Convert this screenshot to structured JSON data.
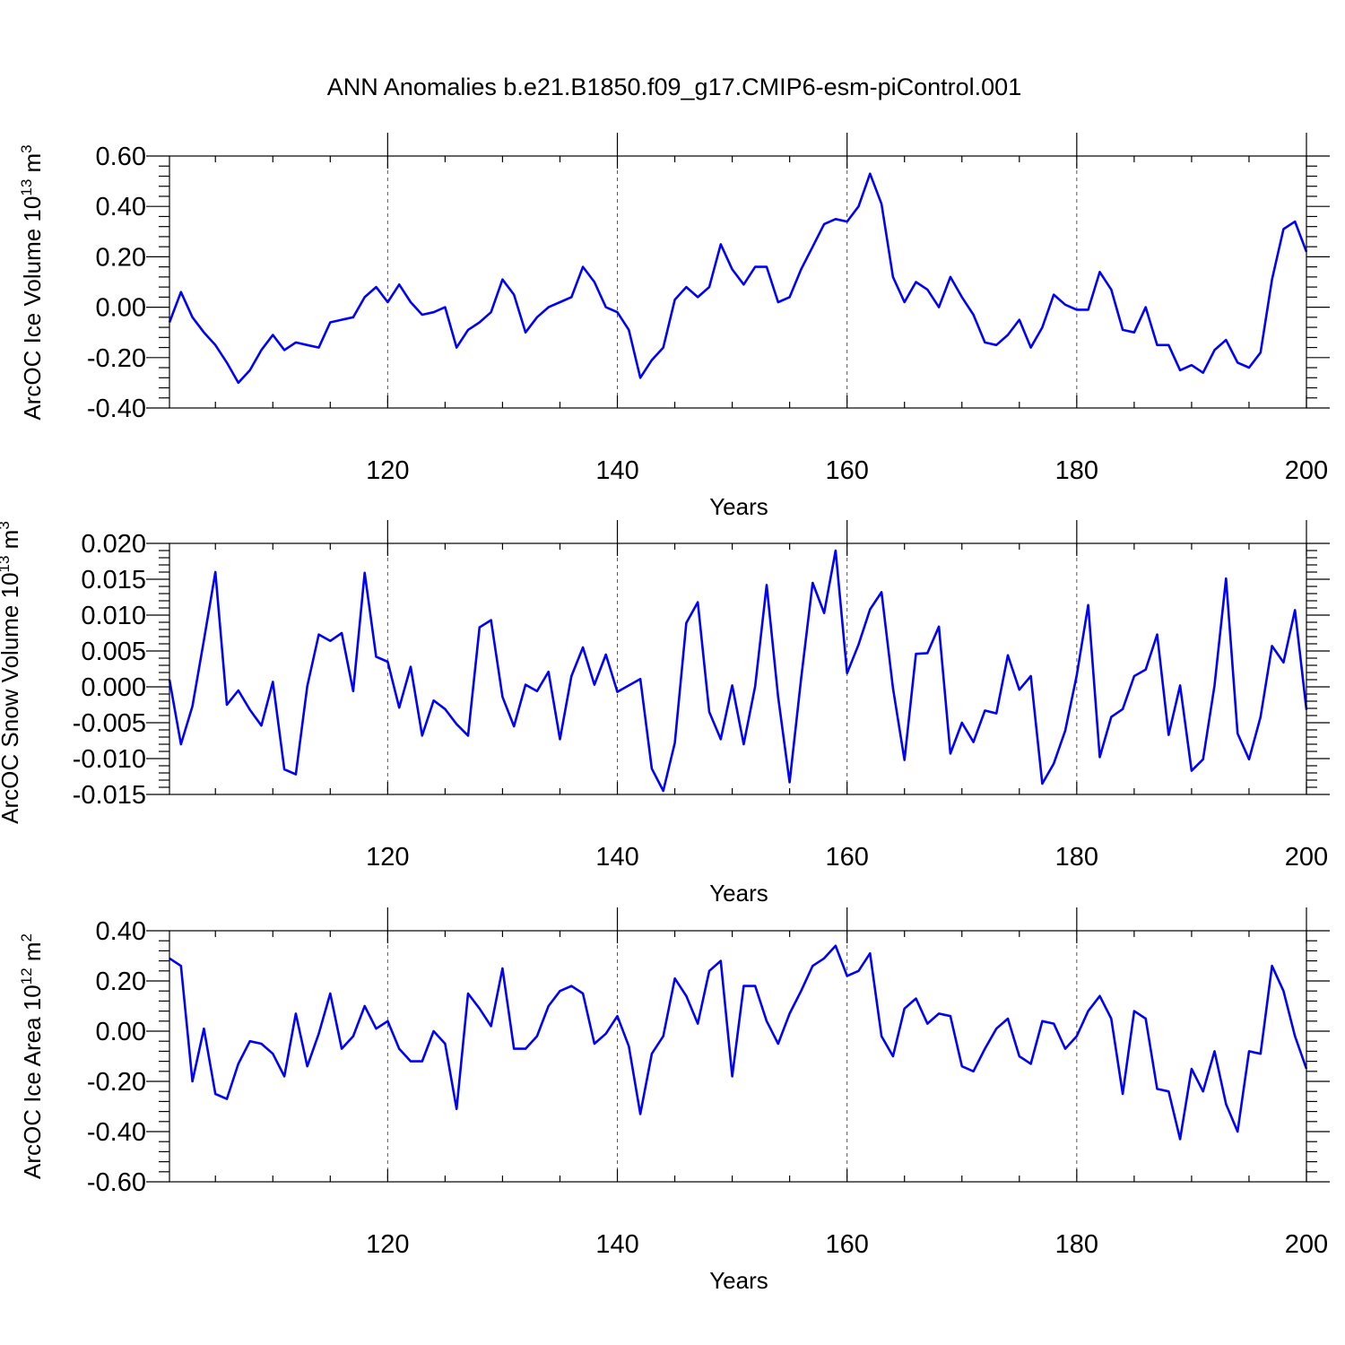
{
  "chart_data": {
    "type": "line",
    "title": "ANN Anomalies b.e21.B1850.f09_g17.CMIP6-esm-piControl.001",
    "line_color": "#0000ff",
    "x_tick_labels": [
      "120",
      "140",
      "160",
      "180",
      "200"
    ],
    "panels": [
      {
        "name": "ice-volume",
        "type": "line",
        "xlabel": "Years",
        "ylabel_main": "ArcOC Ice Volume 10",
        "ylabel_exp": "13",
        "ylabel_unit": " m",
        "ylabel_unit_exp": "3",
        "xlim": [
          101,
          200
        ],
        "ylim": [
          -0.4,
          0.6
        ],
        "grid_x": [
          120,
          140,
          160,
          180
        ],
        "x_ticks": [
          120,
          140,
          160,
          180,
          200
        ],
        "y_ticks": [
          -0.4,
          -0.2,
          0.0,
          0.2,
          0.4,
          0.6
        ],
        "y_tick_labels": [
          "-0.40",
          "-0.20",
          "0.00",
          "0.20",
          "0.40",
          "0.60"
        ],
        "x": [
          101,
          102,
          103,
          104,
          105,
          106,
          107,
          108,
          109,
          110,
          111,
          112,
          113,
          114,
          115,
          116,
          117,
          118,
          119,
          120,
          121,
          122,
          123,
          124,
          125,
          126,
          127,
          128,
          129,
          130,
          131,
          132,
          133,
          134,
          135,
          136,
          137,
          138,
          139,
          140,
          141,
          142,
          143,
          144,
          145,
          146,
          147,
          148,
          149,
          150,
          151,
          152,
          153,
          154,
          155,
          156,
          157,
          158,
          159,
          160,
          161,
          162,
          163,
          164,
          165,
          166,
          167,
          168,
          169,
          170,
          171,
          172,
          173,
          174,
          175,
          176,
          177,
          178,
          179,
          180,
          181,
          182,
          183,
          184,
          185,
          186,
          187,
          188,
          189,
          190,
          191,
          192,
          193,
          194,
          195,
          196,
          197,
          198,
          199,
          200
        ],
        "values": [
          -0.06,
          0.06,
          -0.04,
          -0.1,
          -0.15,
          -0.22,
          -0.3,
          -0.25,
          -0.17,
          -0.11,
          -0.17,
          -0.14,
          -0.15,
          -0.16,
          -0.06,
          -0.05,
          -0.04,
          0.04,
          0.08,
          0.02,
          0.09,
          0.02,
          -0.03,
          -0.02,
          0.0,
          -0.16,
          -0.09,
          -0.06,
          -0.02,
          0.11,
          0.05,
          -0.1,
          -0.04,
          0.0,
          0.02,
          0.04,
          0.16,
          0.1,
          0.0,
          -0.02,
          -0.09,
          -0.28,
          -0.21,
          -0.16,
          0.03,
          0.08,
          0.04,
          0.08,
          0.25,
          0.15,
          0.09,
          0.16,
          0.16,
          0.02,
          0.04,
          0.15,
          0.24,
          0.33,
          0.35,
          0.34,
          0.4,
          0.53,
          0.41,
          0.12,
          0.02,
          0.1,
          0.07,
          0.0,
          0.12,
          0.04,
          -0.03,
          -0.14,
          -0.15,
          -0.11,
          -0.05,
          -0.16,
          -0.08,
          0.05,
          0.01,
          -0.01,
          -0.01,
          0.14,
          0.07,
          -0.09,
          -0.1,
          0.0,
          -0.15,
          -0.15,
          -0.25,
          -0.23,
          -0.26,
          -0.17,
          -0.13,
          -0.22,
          -0.24,
          -0.18,
          0.11,
          0.31,
          0.34,
          0.22
        ]
      },
      {
        "name": "snow-volume",
        "type": "line",
        "xlabel": "Years",
        "ylabel_main": "ArcOC Snow Volume 10",
        "ylabel_exp": "13",
        "ylabel_unit": " m",
        "ylabel_unit_exp": "3",
        "xlim": [
          101,
          200
        ],
        "ylim": [
          -0.015,
          0.02
        ],
        "grid_x": [
          120,
          140,
          160,
          180
        ],
        "x_ticks": [
          120,
          140,
          160,
          180,
          200
        ],
        "y_ticks": [
          -0.015,
          -0.01,
          -0.005,
          0.0,
          0.005,
          0.01,
          0.015,
          0.02
        ],
        "y_tick_labels": [
          "-0.015",
          "-0.010",
          "-0.005",
          "0.000",
          "0.005",
          "0.010",
          "0.015",
          "0.020"
        ],
        "x": [
          101,
          102,
          103,
          104,
          105,
          106,
          107,
          108,
          109,
          110,
          111,
          112,
          113,
          114,
          115,
          116,
          117,
          118,
          119,
          120,
          121,
          122,
          123,
          124,
          125,
          126,
          127,
          128,
          129,
          130,
          131,
          132,
          133,
          134,
          135,
          136,
          137,
          138,
          139,
          140,
          141,
          142,
          143,
          144,
          145,
          146,
          147,
          148,
          149,
          150,
          151,
          152,
          153,
          154,
          155,
          156,
          157,
          158,
          159,
          160,
          161,
          162,
          163,
          164,
          165,
          166,
          167,
          168,
          169,
          170,
          171,
          172,
          173,
          174,
          175,
          176,
          177,
          178,
          179,
          180,
          181,
          182,
          183,
          184,
          185,
          186,
          187,
          188,
          189,
          190,
          191,
          192,
          193,
          194,
          195,
          196,
          197,
          198,
          199,
          200
        ],
        "values": [
          0.001,
          -0.008,
          -0.0027,
          0.0065,
          0.016,
          -0.0025,
          -0.0005,
          -0.0032,
          -0.0054,
          0.0007,
          -0.0115,
          -0.0122,
          0.0001,
          0.0073,
          0.0064,
          0.0075,
          -0.0006,
          0.0159,
          0.0042,
          0.0035,
          -0.0029,
          0.0028,
          -0.0068,
          -0.0019,
          -0.0031,
          -0.0052,
          -0.0068,
          0.0083,
          0.0093,
          -0.0014,
          -0.0055,
          0.0003,
          -0.0006,
          0.0021,
          -0.0073,
          0.0015,
          0.0055,
          0.0003,
          0.0045,
          -0.0007,
          0.0002,
          0.0011,
          -0.0114,
          -0.0145,
          -0.0078,
          0.0089,
          0.0118,
          -0.0035,
          -0.0073,
          0.0002,
          -0.008,
          0.0001,
          0.0142,
          -0.0014,
          -0.0133,
          0.0011,
          0.0145,
          0.0103,
          0.019,
          0.0019,
          0.0059,
          0.0108,
          0.0132,
          -0.0002,
          -0.0102,
          0.0046,
          0.0047,
          0.0084,
          -0.0093,
          -0.005,
          -0.0077,
          -0.0033,
          -0.0037,
          0.0044,
          -0.0004,
          0.0015,
          -0.0135,
          -0.0107,
          -0.0061,
          0.0016,
          0.0114,
          -0.0098,
          -0.0042,
          -0.0031,
          0.0015,
          0.0024,
          0.0073,
          -0.0067,
          0.0002,
          -0.0117,
          -0.0101,
          0.0002,
          0.0151,
          -0.0065,
          -0.0101,
          -0.0042,
          0.0057,
          0.0034,
          0.0107,
          -0.0032
        ]
      },
      {
        "name": "ice-area",
        "type": "line",
        "xlabel": "Years",
        "ylabel_main": "ArcOC Ice Area 10",
        "ylabel_exp": "12",
        "ylabel_unit": " m",
        "ylabel_unit_exp": "2",
        "xlim": [
          101,
          200
        ],
        "ylim": [
          -0.6,
          0.4
        ],
        "grid_x": [
          120,
          140,
          160,
          180
        ],
        "x_ticks": [
          120,
          140,
          160,
          180,
          200
        ],
        "y_ticks": [
          -0.6,
          -0.4,
          -0.2,
          0.0,
          0.2,
          0.4
        ],
        "y_tick_labels": [
          "-0.60",
          "-0.40",
          "-0.20",
          "0.00",
          "0.20",
          "0.40"
        ],
        "x": [
          101,
          102,
          103,
          104,
          105,
          106,
          107,
          108,
          109,
          110,
          111,
          112,
          113,
          114,
          115,
          116,
          117,
          118,
          119,
          120,
          121,
          122,
          123,
          124,
          125,
          126,
          127,
          128,
          129,
          130,
          131,
          132,
          133,
          134,
          135,
          136,
          137,
          138,
          139,
          140,
          141,
          142,
          143,
          144,
          145,
          146,
          147,
          148,
          149,
          150,
          151,
          152,
          153,
          154,
          155,
          156,
          157,
          158,
          159,
          160,
          161,
          162,
          163,
          164,
          165,
          166,
          167,
          168,
          169,
          170,
          171,
          172,
          173,
          174,
          175,
          176,
          177,
          178,
          179,
          180,
          181,
          182,
          183,
          184,
          185,
          186,
          187,
          188,
          189,
          190,
          191,
          192,
          193,
          194,
          195,
          196,
          197,
          198,
          199,
          200
        ],
        "values": [
          0.29,
          0.26,
          -0.2,
          0.01,
          -0.25,
          -0.27,
          -0.13,
          -0.04,
          -0.05,
          -0.09,
          -0.18,
          0.07,
          -0.14,
          -0.01,
          0.15,
          -0.07,
          -0.02,
          0.1,
          0.01,
          0.04,
          -0.07,
          -0.12,
          -0.12,
          0.0,
          -0.05,
          -0.31,
          0.15,
          0.09,
          0.02,
          0.25,
          -0.07,
          -0.07,
          -0.02,
          0.1,
          0.16,
          0.18,
          0.15,
          -0.05,
          -0.01,
          0.06,
          -0.06,
          -0.33,
          -0.09,
          -0.02,
          0.21,
          0.14,
          0.03,
          0.24,
          0.28,
          -0.18,
          0.18,
          0.18,
          0.04,
          -0.05,
          0.07,
          0.16,
          0.26,
          0.29,
          0.34,
          0.22,
          0.24,
          0.31,
          -0.02,
          -0.1,
          0.09,
          0.13,
          0.03,
          0.07,
          0.06,
          -0.14,
          -0.16,
          -0.07,
          0.01,
          0.05,
          -0.1,
          -0.13,
          0.04,
          0.03,
          -0.07,
          -0.02,
          0.08,
          0.14,
          0.05,
          -0.25,
          0.08,
          0.05,
          -0.23,
          -0.24,
          -0.43,
          -0.15,
          -0.24,
          -0.08,
          -0.29,
          -0.4,
          -0.08,
          -0.09,
          0.26,
          0.16,
          -0.02,
          -0.15
        ]
      }
    ]
  }
}
